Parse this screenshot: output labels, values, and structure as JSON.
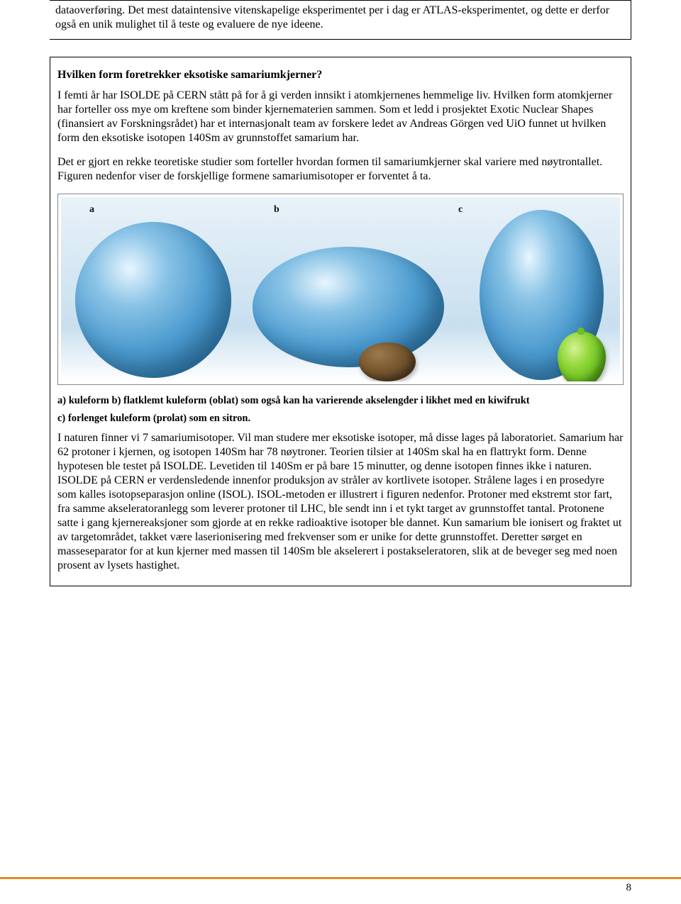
{
  "intro": {
    "text": "dataoverføring. Det mest dataintensive vitenskapelige eksperimentet per i dag er ATLAS-eksperimentet, og dette er derfor også en unik mulighet til å teste og evaluere de nye ideene."
  },
  "article": {
    "heading": "Hvilken form foretrekker eksotiske samariumkjerner?",
    "p1": "I femti år har ISOLDE på CERN stått på for å gi verden innsikt i atomkjernenes hemmelige liv. Hvilken form atomkjerner har forteller oss mye om kreftene som binder kjernematerien sammen. Som et ledd i prosjektet Exotic Nuclear Shapes (finansiert av Forskningsrådet) har et internasjonalt team av forskere ledet av Andreas Görgen ved UiO funnet ut hvilken form den eksotiske isotopen 140Sm av grunnstoffet samarium har.",
    "p2": "Det er gjort en rekke teoretiske studier som forteller hvordan formen til samariumkjerner skal variere med nøytrontallet. Figuren nedenfor viser de forskjellige formene samariumisotoper er forventet å ta.",
    "caption_line1": "a) kuleform b) flatklemt kuleform (oblat) som også kan ha varierende akselengder i likhet med en kiwifrukt",
    "caption_line2": "c) forlenget kuleform (prolat) som en sitron.",
    "p3": "I naturen finner vi 7 samariumisotoper. Vil man studere mer eksotiske isotoper, må disse lages på laboratoriet. Samarium har 62 protoner i kjernen, og isotopen 140Sm har 78 nøytroner. Teorien tilsier at 140Sm skal ha en flattrykt form. Denne hypotesen ble testet på ISOLDE. Levetiden til 140Sm er på bare 15 minutter, og denne isotopen finnes ikke i naturen. ISOLDE på CERN er verdensledende innenfor produksjon av stråler av kortlivete isotoper. Strålene lages i en prosedyre som kalles isotopseparasjon online (ISOL). ISOL-metoden er illustrert i figuren nedenfor. Protoner med ekstremt stor fart, fra samme akseleratoranlegg som leverer protoner til LHC, ble sendt inn i et tykt target av grunnstoffet tantal. Protonene satte i gang kjernereaksjoner som gjorde at en rekke radioaktive isotoper ble dannet. Kun samarium ble ionisert og fraktet ut av targetområdet, takket være laserionisering med frekvenser som er unike for dette grunnstoffet.  Deretter sørget en masseseparator for at kun kjerner med massen til 140Sm ble akselerert i postakseleratoren, slik at de beveger seg med noen prosent av lysets hastighet."
  },
  "figure": {
    "labels": {
      "a": "a",
      "b": "b",
      "c": "c"
    },
    "colors": {
      "sky_top": "#e9f2f9",
      "sky_bottom": "#c8dfef",
      "sphere_highlight": "#e8f6ff",
      "sphere_mid": "#4c9bcf",
      "sphere_dark": "#225f8b",
      "kiwi_light": "#9b7a4b",
      "kiwi_dark": "#46331a",
      "lime_light": "#d3f293",
      "lime_dark": "#3f8c10"
    }
  },
  "footer": {
    "page_number": "8",
    "bar_color": "#e79a3a"
  }
}
